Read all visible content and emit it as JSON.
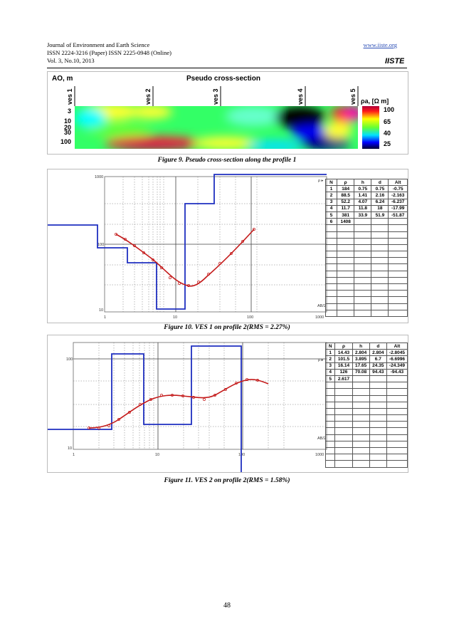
{
  "header": {
    "journal": "Journal of Environment and Earth Science",
    "issn": "ISSN 2224-3216 (Paper) ISSN 2225-0948 (Online)",
    "volume": "Vol. 3, No.10, 2013",
    "url": "www.iiste.org",
    "logo_text": "IISTE"
  },
  "figure9": {
    "title": "Pseudo cross-section",
    "ylabel": "AO, m",
    "ves_labels": [
      "ves 1",
      "ves 2",
      "ves 3",
      "ves 4",
      "ves 5"
    ],
    "depths": [
      "3",
      "10",
      "20",
      "30",
      "100"
    ],
    "legend_title": "ρa, [Ω m]",
    "legend_values": [
      "100",
      "65",
      "40",
      "25"
    ],
    "legend_colors": [
      "#ff1a1a",
      "#ffff00",
      "#00e000",
      "#0000ff"
    ],
    "caption": "Figure 9. Pseudo cross-section along the profile 1"
  },
  "figure10": {
    "caption": "Figure 10. VES 1 on profile 2(RMS = 2.27%)",
    "rho_label": "ρ ▸",
    "ab_label": "AB/2",
    "y_ticks": [
      "1000",
      "100",
      "10"
    ],
    "x_ticks": [
      "1",
      "10",
      "100",
      "1000"
    ],
    "table": {
      "headers": [
        "N",
        "ρ",
        "h",
        "d",
        "Alt"
      ],
      "rows": [
        [
          "1",
          "184",
          "0.75",
          "0.75",
          "-0.75"
        ],
        [
          "2",
          "88.5",
          "1.41",
          "2.16",
          "-2.163"
        ],
        [
          "3",
          "52.2",
          "4.07",
          "6.24",
          "-6.237"
        ],
        [
          "4",
          "11.7",
          "11.8",
          "18",
          "-17.99"
        ],
        [
          "5",
          "381",
          "33.9",
          "51.9",
          "-51.87"
        ],
        [
          "6",
          "1408",
          "",
          "",
          "",
          ""
        ]
      ]
    }
  },
  "figure11": {
    "caption": "Figure 11. VES 2 on profile 2(RMS = 1.58%)",
    "rho_label": "ρ ▸",
    "ab_label": "AB/2",
    "y_ticks": [
      "100",
      "10"
    ],
    "x_ticks": [
      "1",
      "10",
      "100",
      "1000"
    ],
    "table": {
      "headers": [
        "N",
        "ρ",
        "h",
        "d",
        "Alt"
      ],
      "rows": [
        [
          "1",
          "14.43",
          "2.804",
          "2.804",
          "-2.8045"
        ],
        [
          "2",
          "101.5",
          "3.895",
          "6.7",
          "-6.6996"
        ],
        [
          "3",
          "16.14",
          "17.65",
          "24.35",
          "-24.349"
        ],
        [
          "4",
          "126",
          "70.08",
          "94.43",
          "-94.43"
        ],
        [
          "5",
          "2.617",
          "",
          "",
          "",
          ""
        ]
      ]
    }
  },
  "page_number": "48"
}
